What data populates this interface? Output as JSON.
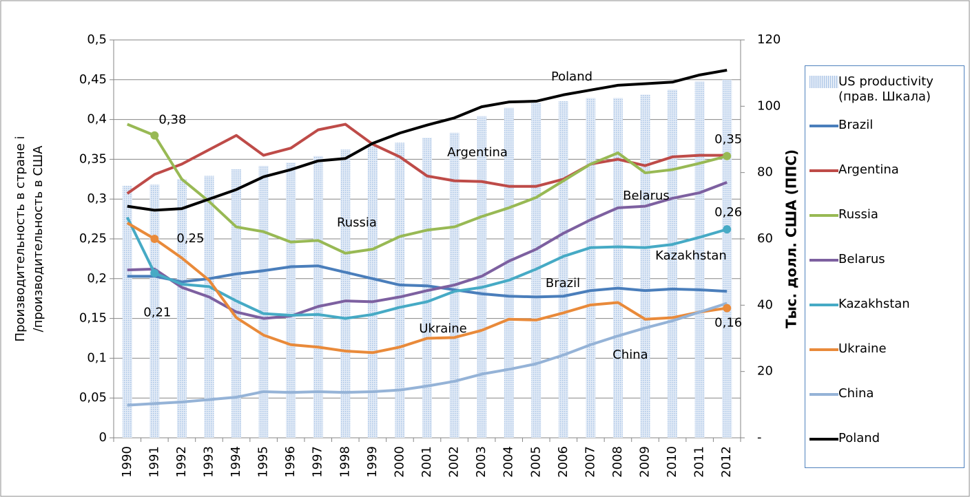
{
  "chart_data": {
    "type": "line",
    "y_label": "Производительность в стране i /производительность в США",
    "y2_label": "Тыс. долл. США (ППС)",
    "categories": [
      "1990",
      "1991",
      "1992",
      "1993",
      "1994",
      "1995",
      "1996",
      "1997",
      "1998",
      "1999",
      "2000",
      "2001",
      "2002",
      "2003",
      "2004",
      "2005",
      "2006",
      "2007",
      "2008",
      "2009",
      "2010",
      "2011",
      "2012"
    ],
    "ylim": [
      0,
      0.5
    ],
    "yticks": [
      0,
      {
        "value": 0.05,
        "label": "0,05"
      },
      {
        "value": 0.1,
        "label": "0,1"
      },
      {
        "value": 0.15,
        "label": "0,15"
      },
      {
        "value": 0.2,
        "label": "0,2"
      },
      {
        "value": 0.25,
        "label": "0,25"
      },
      {
        "value": 0.3,
        "label": "0,3"
      },
      {
        "value": 0.35,
        "label": "0,35"
      },
      {
        "value": 0.4,
        "label": "0,4"
      },
      {
        "value": 0.45,
        "label": "0,45"
      },
      {
        "value": 0.5,
        "label": "0,5"
      }
    ],
    "y2lim": [
      0,
      120
    ],
    "y2ticks": [
      {
        "value": 0,
        "label": "-"
      },
      20,
      40,
      60,
      80,
      100,
      120
    ],
    "grid": true,
    "series": [
      {
        "name": "US productivity (прав. Шкала)",
        "type": "bar",
        "axis": "y2",
        "color": "#c6d9f1",
        "values": [
          76,
          76.4,
          78,
          79,
          81,
          82,
          83,
          85,
          87,
          88,
          89,
          90.5,
          92,
          97,
          99.5,
          101,
          101.5,
          102.5,
          102.5,
          103.5,
          105,
          107.5,
          108
        ]
      },
      {
        "name": "Brazil",
        "type": "line",
        "color": "#4a7ebb",
        "values": [
          0.203,
          0.203,
          0.196,
          0.2,
          0.206,
          0.21,
          0.215,
          0.216,
          0.208,
          0.2,
          0.192,
          0.191,
          0.186,
          0.181,
          0.178,
          0.177,
          0.178,
          0.185,
          0.188,
          0.185,
          0.187,
          0.186,
          0.184
        ]
      },
      {
        "name": "Argentina",
        "type": "line",
        "color": "#be4b48",
        "values": [
          0.307,
          0.331,
          0.344,
          0.362,
          0.38,
          0.355,
          0.364,
          0.387,
          0.394,
          0.369,
          0.353,
          0.329,
          0.323,
          0.322,
          0.316,
          0.316,
          0.325,
          0.344,
          0.35,
          0.342,
          0.353,
          0.355,
          0.355
        ]
      },
      {
        "name": "Russia",
        "type": "line",
        "color": "#98b954",
        "values": [
          0.394,
          0.38,
          0.325,
          0.297,
          0.265,
          0.259,
          0.246,
          0.248,
          0.232,
          0.237,
          0.253,
          0.261,
          0.265,
          0.278,
          0.289,
          0.302,
          0.323,
          0.344,
          0.358,
          0.333,
          0.337,
          0.345,
          0.354
        ],
        "value_labels": [
          null,
          "0,38",
          null,
          null,
          null,
          null,
          null,
          null,
          null,
          null,
          null,
          null,
          null,
          null,
          null,
          null,
          null,
          null,
          null,
          null,
          null,
          null,
          "0,35"
        ]
      },
      {
        "name": "Belarus",
        "type": "line",
        "color": "#7d60a0",
        "values": [
          0.211,
          0.212,
          0.189,
          0.177,
          0.158,
          0.15,
          0.153,
          0.165,
          0.172,
          0.171,
          0.177,
          0.185,
          0.192,
          0.203,
          0.222,
          0.237,
          0.257,
          0.274,
          0.289,
          0.291,
          0.301,
          0.308,
          0.321
        ]
      },
      {
        "name": "Kazakhstan",
        "type": "line",
        "color": "#46aac5",
        "values": [
          0.277,
          0.207,
          0.193,
          0.19,
          0.172,
          0.156,
          0.154,
          0.155,
          0.15,
          0.155,
          0.164,
          0.171,
          0.184,
          0.189,
          0.198,
          0.212,
          0.228,
          0.239,
          0.24,
          0.239,
          0.243,
          0.252,
          0.262
        ],
        "value_labels": [
          null,
          "0,21",
          null,
          null,
          null,
          null,
          null,
          null,
          null,
          null,
          null,
          null,
          null,
          null,
          null,
          null,
          null,
          null,
          null,
          null,
          null,
          null,
          "0,26"
        ]
      },
      {
        "name": "Ukraine",
        "type": "line",
        "color": "#e98a3a",
        "values": [
          0.27,
          0.25,
          0.226,
          0.198,
          0.151,
          0.129,
          0.117,
          0.114,
          0.109,
          0.107,
          0.114,
          0.125,
          0.126,
          0.135,
          0.149,
          0.148,
          0.157,
          0.167,
          0.17,
          0.149,
          0.151,
          0.158,
          0.163
        ],
        "value_labels": [
          null,
          "0,25",
          null,
          null,
          null,
          null,
          null,
          null,
          null,
          null,
          null,
          null,
          null,
          null,
          null,
          null,
          null,
          null,
          null,
          null,
          null,
          null,
          "0,16"
        ]
      },
      {
        "name": "China",
        "type": "line",
        "color": "#95b3d7",
        "values": [
          0.041,
          0.043,
          0.045,
          0.048,
          0.051,
          0.058,
          0.057,
          0.058,
          0.057,
          0.058,
          0.06,
          0.065,
          0.071,
          0.08,
          0.086,
          0.093,
          0.104,
          0.117,
          0.128,
          0.138,
          0.147,
          0.158,
          0.169
        ]
      },
      {
        "name": "Poland",
        "type": "line",
        "color": "#000000",
        "values": [
          0.291,
          0.286,
          0.288,
          0.3,
          0.312,
          0.328,
          0.337,
          0.348,
          0.351,
          0.37,
          0.383,
          0.393,
          0.402,
          0.416,
          0.422,
          0.423,
          0.431,
          0.437,
          0.443,
          0.445,
          0.447,
          0.456,
          0.462
        ]
      }
    ]
  }
}
